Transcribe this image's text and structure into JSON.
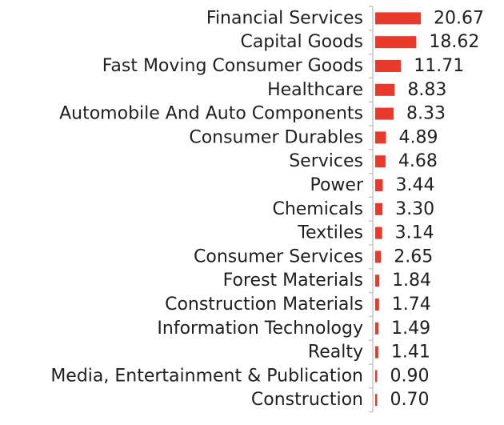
{
  "chart_data": {
    "type": "bar",
    "orientation": "horizontal",
    "categories": [
      "Financial Services",
      "Capital Goods",
      "Fast Moving Consumer Goods",
      "Healthcare",
      "Automobile And Auto Components",
      "Consumer Durables",
      "Services",
      "Power",
      "Chemicals",
      "Textiles",
      "Consumer Services",
      "Forest Materials",
      "Construction Materials",
      "Information Technology",
      "Realty",
      "Media, Entertainment & Publication",
      "Construction"
    ],
    "values": [
      20.67,
      18.62,
      11.71,
      8.83,
      8.33,
      4.89,
      4.68,
      3.44,
      3.3,
      3.14,
      2.65,
      1.84,
      1.74,
      1.49,
      1.41,
      0.9,
      0.7
    ],
    "value_labels": [
      "20.67",
      "18.62",
      "11.71",
      "8.83",
      "8.33",
      "4.89",
      "4.68",
      "3.44",
      "3.30",
      "3.14",
      "2.65",
      "1.84",
      "1.74",
      "1.49",
      "1.41",
      "0.90",
      "0.70"
    ],
    "bar_color": "#e8392a",
    "xlim": [
      0,
      20.67
    ],
    "grid": false,
    "legend": "none"
  }
}
